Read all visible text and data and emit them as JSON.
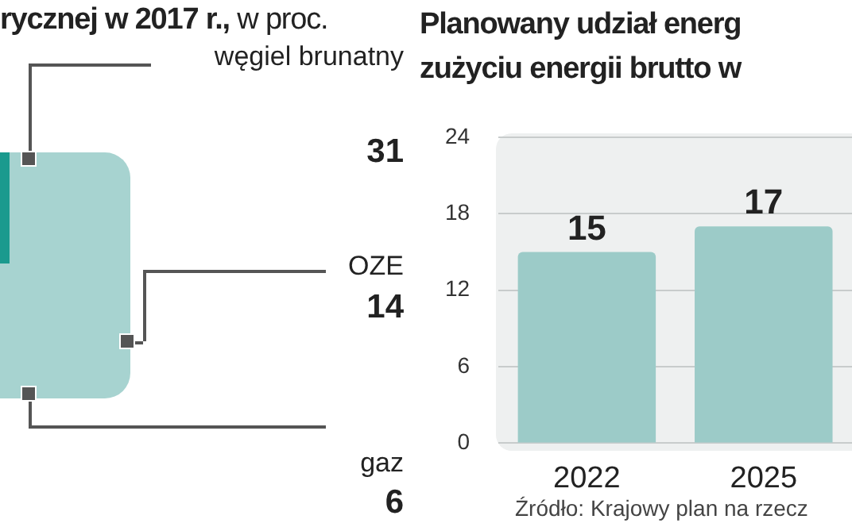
{
  "chart_data": [
    {
      "type": "other",
      "title": "rycznej w 2017 r.,",
      "subtitle": "w proc.",
      "categories": [
        "węgiel brunatny",
        "OZE",
        "gaz"
      ],
      "values": [
        31,
        14,
        6
      ],
      "data_labels": true
    },
    {
      "type": "bar",
      "title": "Planowany udział energ\nzużyciu energii brutto w",
      "categories": [
        "2022",
        "2025"
      ],
      "values": [
        15,
        17
      ],
      "color": "#9ccbc8",
      "ylim": [
        0,
        24
      ],
      "yticks": [
        0,
        6,
        12,
        18,
        24
      ],
      "grid": "y",
      "data_labels": true,
      "annotations": [
        "Źródło: Krajowy plan na rzecz"
      ]
    }
  ]
}
